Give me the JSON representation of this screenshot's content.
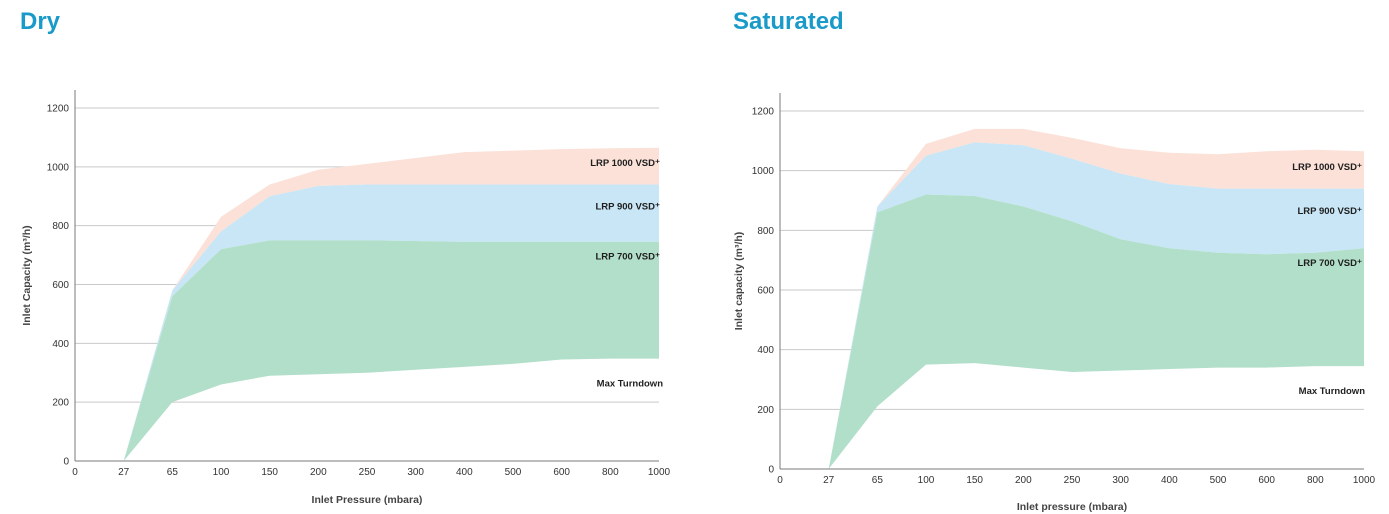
{
  "colors": {
    "title": "#1a9ac9",
    "lrp1000": "#fbe1d8",
    "lrp900": "#c8e6f6",
    "lrp700": "#b2dfca"
  },
  "chart_data": [
    {
      "type": "area",
      "title": "Dry",
      "xlabel": "Inlet Pressure (mbara)",
      "ylabel": "Inlet Capacity (m³/h)",
      "x_ticks": [
        "0",
        "27",
        "65",
        "100",
        "150",
        "200",
        "250",
        "300",
        "400",
        "500",
        "600",
        "800",
        "1000"
      ],
      "ylim": [
        0,
        1200
      ],
      "y_ticks": [
        0,
        200,
        400,
        600,
        800,
        1000,
        1200
      ],
      "grid": true,
      "series": [
        {
          "name": "LRP 1000 VSD⁺",
          "color": "#fbe1d8",
          "values": [
            null,
            0,
            580,
            830,
            940,
            990,
            1010,
            1030,
            1050,
            1055,
            1060,
            1063,
            1065
          ]
        },
        {
          "name": "LRP 900 VSD⁺",
          "color": "#c8e6f6",
          "values": [
            null,
            0,
            580,
            780,
            900,
            935,
            940,
            940,
            940,
            940,
            940,
            940,
            940
          ]
        },
        {
          "name": "LRP 700 VSD⁺",
          "color": "#b2dfca",
          "values": [
            null,
            0,
            560,
            720,
            750,
            750,
            750,
            748,
            745,
            745,
            745,
            745,
            745
          ]
        },
        {
          "name": "Max Turndown",
          "values": [
            null,
            0,
            200,
            260,
            290,
            295,
            300,
            310,
            320,
            330,
            345,
            348,
            348
          ]
        }
      ]
    },
    {
      "type": "area",
      "title": "Saturated",
      "xlabel": "Inlet pressure (mbara)",
      "ylabel": "Inlet capacity (m³/h)",
      "x_ticks": [
        "0",
        "27",
        "65",
        "100",
        "150",
        "200",
        "250",
        "300",
        "400",
        "500",
        "600",
        "800",
        "1000"
      ],
      "ylim": [
        0,
        1200
      ],
      "y_ticks": [
        0,
        200,
        400,
        600,
        800,
        1000,
        1200
      ],
      "grid": true,
      "series": [
        {
          "name": "LRP 1000 VSD⁺",
          "color": "#fbe1d8",
          "values": [
            null,
            0,
            880,
            1090,
            1140,
            1140,
            1110,
            1075,
            1060,
            1055,
            1065,
            1070,
            1065
          ]
        },
        {
          "name": "LRP 900 VSD⁺",
          "color": "#c8e6f6",
          "values": [
            null,
            0,
            880,
            1050,
            1095,
            1085,
            1040,
            990,
            955,
            940,
            940,
            940,
            940
          ]
        },
        {
          "name": "LRP 700 VSD⁺",
          "color": "#b2dfca",
          "values": [
            null,
            0,
            860,
            920,
            915,
            880,
            830,
            770,
            740,
            725,
            720,
            725,
            740
          ]
        },
        {
          "name": "Max Turndown",
          "values": [
            null,
            0,
            210,
            350,
            355,
            340,
            325,
            330,
            335,
            340,
            340,
            345,
            345
          ]
        }
      ]
    }
  ]
}
